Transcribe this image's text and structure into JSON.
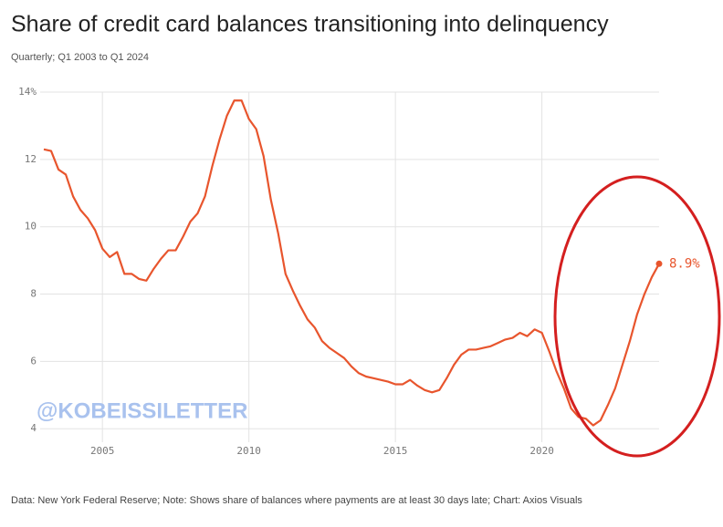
{
  "chart_data": {
    "type": "line",
    "title": "Share of credit card balances transitioning into delinquency",
    "subtitle": "Quarterly; Q1 2003 to Q1 2024",
    "source": "Data: New York Federal Reserve; Note: Shows share of balances where payments are at least 30 days late; Chart: Axios Visuals",
    "watermark": "@KOBEISSILETTER",
    "x": [
      2003,
      2003.25,
      2003.5,
      2003.75,
      2004,
      2004.25,
      2004.5,
      2004.75,
      2005,
      2005.25,
      2005.5,
      2005.75,
      2006,
      2006.25,
      2006.5,
      2006.75,
      2007,
      2007.25,
      2007.5,
      2007.75,
      2008,
      2008.25,
      2008.5,
      2008.75,
      2009,
      2009.25,
      2009.5,
      2009.75,
      2010,
      2010.25,
      2010.5,
      2010.75,
      2011,
      2011.25,
      2011.5,
      2011.75,
      2012,
      2012.25,
      2012.5,
      2012.75,
      2013,
      2013.25,
      2013.5,
      2013.75,
      2014,
      2014.25,
      2014.5,
      2014.75,
      2015,
      2015.25,
      2015.5,
      2015.75,
      2016,
      2016.25,
      2016.5,
      2016.75,
      2017,
      2017.25,
      2017.5,
      2017.75,
      2018,
      2018.25,
      2018.5,
      2018.75,
      2019,
      2019.25,
      2019.5,
      2019.75,
      2020,
      2020.25,
      2020.5,
      2020.75,
      2021,
      2021.25,
      2021.5,
      2021.75,
      2022,
      2022.25,
      2022.5,
      2022.75,
      2023,
      2023.25,
      2023.5,
      2023.75,
      2024
    ],
    "series": [
      {
        "color": "#e8552d",
        "values": [
          12.3,
          12.25,
          11.7,
          11.55,
          10.9,
          10.5,
          10.25,
          9.9,
          9.35,
          9.1,
          9.25,
          8.6,
          8.6,
          8.45,
          8.4,
          8.75,
          9.05,
          9.3,
          9.3,
          9.7,
          10.15,
          10.4,
          10.9,
          11.8,
          12.6,
          13.3,
          13.75,
          13.75,
          13.2,
          12.9,
          12.1,
          10.8,
          9.8,
          8.6,
          8.1,
          7.65,
          7.25,
          7.0,
          6.6,
          6.4,
          6.25,
          6.1,
          5.85,
          5.65,
          5.55,
          5.5,
          5.45,
          5.4,
          5.32,
          5.32,
          5.45,
          5.28,
          5.15,
          5.08,
          5.15,
          5.5,
          5.9,
          6.2,
          6.35,
          6.35,
          6.4,
          6.45,
          6.55,
          6.65,
          6.7,
          6.85,
          6.75,
          6.95,
          6.85,
          6.3,
          5.7,
          5.2,
          4.6,
          4.35,
          4.3,
          4.1,
          4.25,
          4.7,
          5.2,
          5.9,
          6.6,
          7.4,
          8.0,
          8.5,
          8.9
        ],
        "value_labels": [
          null,
          null,
          null,
          null,
          null,
          null,
          null,
          null,
          null,
          null,
          null,
          null,
          null,
          null,
          null,
          null,
          null,
          null,
          null,
          null,
          null,
          null,
          null,
          null,
          null,
          null,
          null,
          null,
          null,
          null,
          null,
          null,
          null,
          null,
          null,
          null,
          null,
          null,
          null,
          null,
          null,
          null,
          null,
          null,
          null,
          null,
          null,
          null,
          null,
          null,
          null,
          null,
          null,
          null,
          null,
          null,
          null,
          null,
          null,
          null,
          null,
          null,
          null,
          null,
          null,
          null,
          null,
          null,
          null,
          null,
          null,
          null,
          null,
          null,
          null,
          null,
          null,
          null,
          null,
          null,
          null,
          null,
          null,
          null,
          "8.9%"
        ]
      }
    ],
    "xlim": [
      2003,
      2024
    ],
    "xticks": [
      2005,
      2010,
      2015,
      2020
    ],
    "ylim": [
      3.6,
      14
    ],
    "yticks": [
      {
        "value": 14,
        "label": "14%"
      },
      12,
      10,
      8,
      6,
      4
    ],
    "grid": true
  }
}
